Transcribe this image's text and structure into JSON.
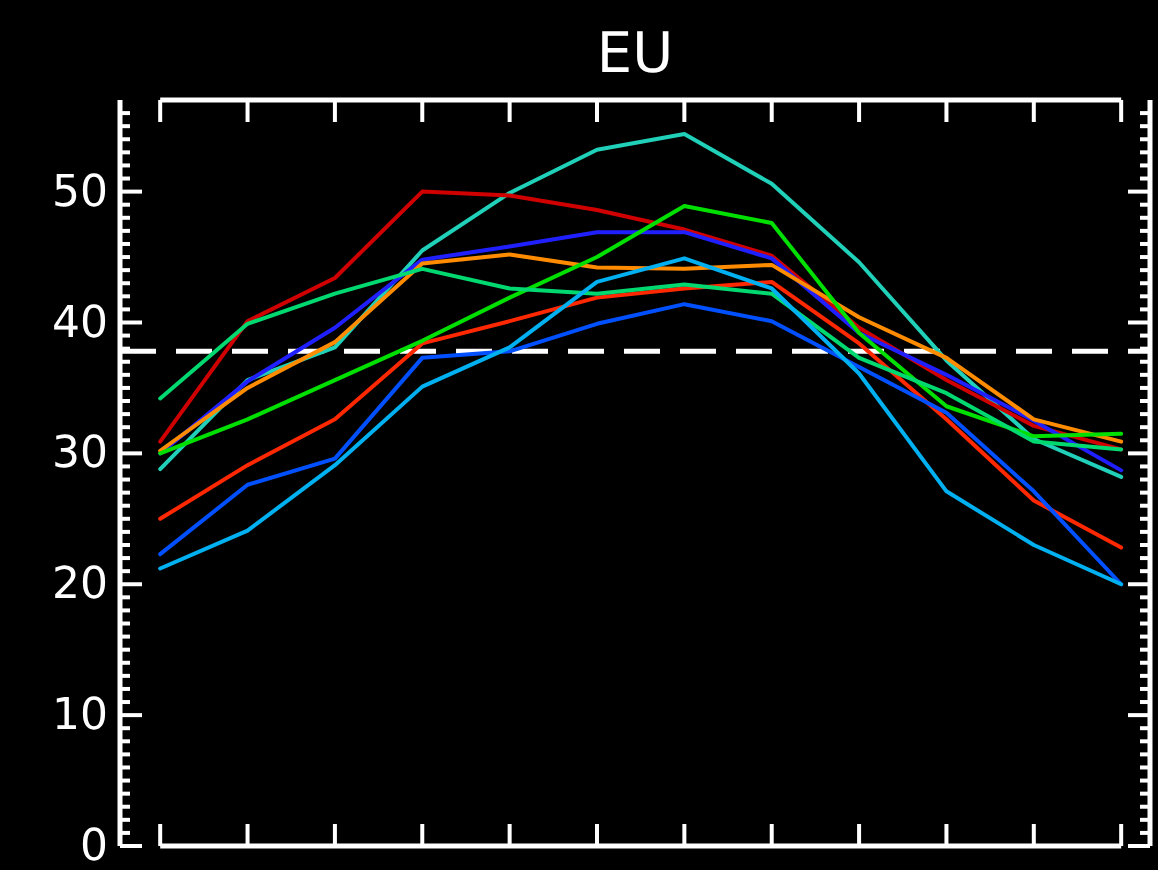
{
  "chart_data": {
    "type": "line",
    "title": "EU",
    "categories": [
      null,
      null,
      null,
      null,
      null,
      null,
      null,
      null,
      null,
      null,
      null,
      null
    ],
    "ylim": [
      0,
      57
    ],
    "yticks": [
      0,
      {
        "value": 1,
        "label": null
      },
      {
        "value": 2,
        "label": null
      },
      {
        "value": 3,
        "label": null
      },
      {
        "value": 4,
        "label": null
      },
      {
        "value": 5,
        "label": null
      },
      {
        "value": 6,
        "label": null
      },
      {
        "value": 7,
        "label": null
      },
      {
        "value": 8,
        "label": null
      },
      {
        "value": 9,
        "label": null
      },
      10,
      {
        "value": 11,
        "label": null
      },
      {
        "value": 12,
        "label": null
      },
      {
        "value": 13,
        "label": null
      },
      {
        "value": 14,
        "label": null
      },
      {
        "value": 15,
        "label": null
      },
      {
        "value": 16,
        "label": null
      },
      {
        "value": 17,
        "label": null
      },
      {
        "value": 18,
        "label": null
      },
      {
        "value": 19,
        "label": null
      },
      20,
      {
        "value": 21,
        "label": null
      },
      {
        "value": 22,
        "label": null
      },
      {
        "value": 23,
        "label": null
      },
      {
        "value": 24,
        "label": null
      },
      {
        "value": 25,
        "label": null
      },
      {
        "value": 26,
        "label": null
      },
      {
        "value": 27,
        "label": null
      },
      {
        "value": 28,
        "label": null
      },
      {
        "value": 29,
        "label": null
      },
      30,
      {
        "value": 31,
        "label": null
      },
      {
        "value": 32,
        "label": null
      },
      {
        "value": 33,
        "label": null
      },
      {
        "value": 34,
        "label": null
      },
      {
        "value": 35,
        "label": null
      },
      {
        "value": 36,
        "label": null
      },
      {
        "value": 37,
        "label": null
      },
      {
        "value": 38,
        "label": null
      },
      {
        "value": 39,
        "label": null
      },
      40,
      {
        "value": 41,
        "label": null
      },
      {
        "value": 42,
        "label": null
      },
      {
        "value": 43,
        "label": null
      },
      {
        "value": 44,
        "label": null
      },
      {
        "value": 45,
        "label": null
      },
      {
        "value": 46,
        "label": null
      },
      {
        "value": 47,
        "label": null
      },
      {
        "value": 48,
        "label": null
      },
      {
        "value": 49,
        "label": null
      },
      50,
      {
        "value": 51,
        "label": null
      },
      {
        "value": 52,
        "label": null
      },
      {
        "value": 53,
        "label": null
      },
      {
        "value": 54,
        "label": null
      },
      {
        "value": 55,
        "label": null
      },
      {
        "value": 56,
        "label": null
      }
    ],
    "tick_labels": "y",
    "grid": false,
    "marker": "none",
    "line_style": "solid",
    "ref_lines": [
      {
        "axis": "y",
        "value": 37.8,
        "color": "#ffffff",
        "line_style": "dashed"
      }
    ],
    "series": [
      {
        "color": "#20d0b8",
        "values": [
          28.8,
          35.6,
          38.1,
          45.5,
          49.9,
          53.2,
          54.4,
          50.6,
          44.6,
          37.1,
          31.1,
          28.2
        ]
      },
      {
        "color": "#d00000",
        "values": [
          30.9,
          40.1,
          43.4,
          50,
          49.7,
          48.6,
          47.1,
          45.1,
          39.6,
          35.6,
          32.1,
          30.3
        ]
      },
      {
        "color": "#ff2800",
        "values": [
          25,
          29.1,
          32.6,
          38.4,
          40.1,
          41.9,
          42.6,
          43.1,
          38.4,
          32.6,
          26.4,
          22.8
        ]
      },
      {
        "color": "#2020ff",
        "values": [
          30,
          35.5,
          39.6,
          44.8,
          45.8,
          46.9,
          46.9,
          44.9,
          39.2,
          36,
          32.5,
          28.7
        ]
      },
      {
        "color": "#ff8c00",
        "values": [
          30.2,
          35,
          38.5,
          44.5,
          45.2,
          44.2,
          44.1,
          44.4,
          40.4,
          37.3,
          32.6,
          30.9
        ]
      },
      {
        "color": "#00e000",
        "values": [
          30,
          32.6,
          35.6,
          38.6,
          41.9,
          45,
          48.9,
          47.6,
          39.2,
          33.6,
          31.3,
          31.5
        ]
      },
      {
        "color": "#00d870",
        "values": [
          34.2,
          39.9,
          42.2,
          44.1,
          42.6,
          42.2,
          42.9,
          42.2,
          37.3,
          34.6,
          30.9,
          30.3
        ]
      },
      {
        "color": "#0050ff",
        "values": [
          22.3,
          27.6,
          29.6,
          37.3,
          37.8,
          39.9,
          41.4,
          40.1,
          36.6,
          33.1,
          27.1,
          20
        ]
      },
      {
        "color": "#00b0f0",
        "values": [
          21.2,
          24.1,
          29.1,
          35.1,
          38.1,
          43.1,
          44.9,
          42.6,
          36.1,
          27.1,
          23,
          20
        ]
      }
    ]
  }
}
